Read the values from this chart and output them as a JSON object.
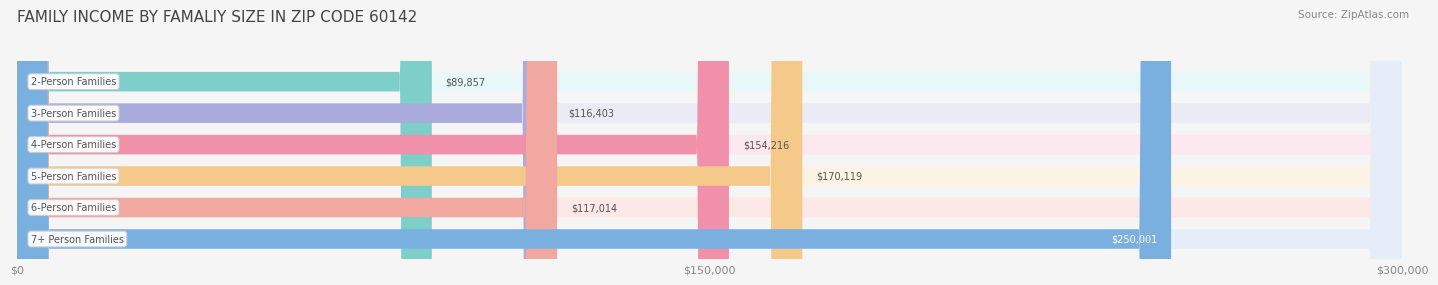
{
  "title": "FAMILY INCOME BY FAMALIY SIZE IN ZIP CODE 60142",
  "source": "Source: ZipAtlas.com",
  "categories": [
    "2-Person Families",
    "3-Person Families",
    "4-Person Families",
    "5-Person Families",
    "6-Person Families",
    "7+ Person Families"
  ],
  "values": [
    89857,
    116403,
    154216,
    170119,
    117014,
    250001
  ],
  "value_labels": [
    "$89,857",
    "$116,403",
    "$154,216",
    "$170,119",
    "$117,014",
    "$250,001"
  ],
  "bar_colors": [
    "#7ececa",
    "#aaaadd",
    "#f090aa",
    "#f5c98a",
    "#f0a8a0",
    "#7ab0e0"
  ],
  "bar_bg_colors": [
    "#e8f8f8",
    "#ebebf5",
    "#fce8ee",
    "#fdf3e5",
    "#fce8e6",
    "#e5eef8"
  ],
  "label_text_color": "#555555",
  "tick_label_color": "#888888",
  "grid_color": "#dddddd",
  "bg_color": "#f5f5f5",
  "xlim": [
    0,
    300000
  ],
  "xticks": [
    0,
    150000,
    300000
  ],
  "xtick_labels": [
    "$0",
    "$150,000",
    "$300,000"
  ],
  "title_color": "#444444",
  "title_fontsize": 11,
  "bar_height": 0.62,
  "value_label_last_color": "#ffffff"
}
